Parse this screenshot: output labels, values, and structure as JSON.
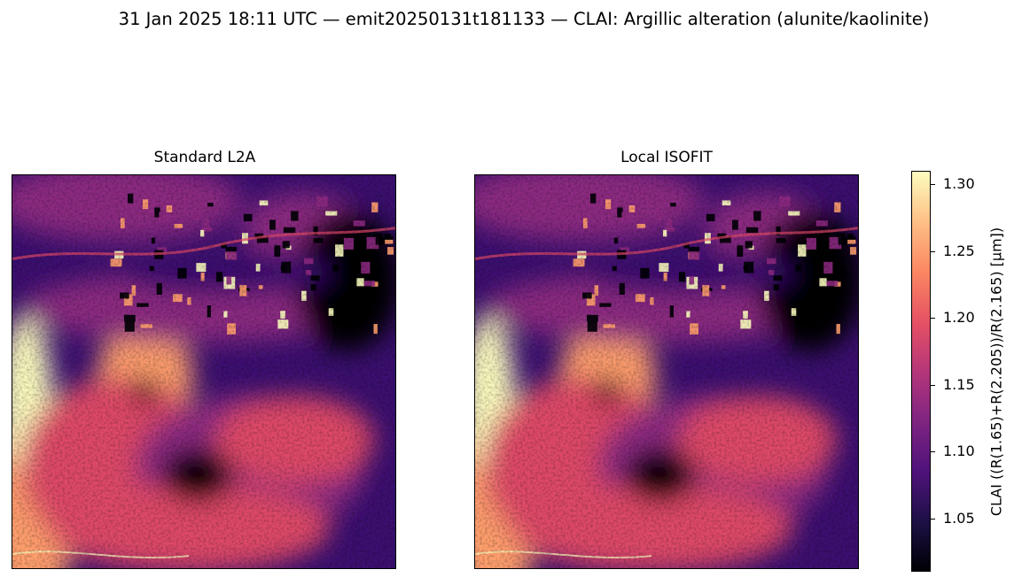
{
  "figure": {
    "suptitle": "31 Jan 2025 18:11 UTC — emit20250131t181133 — CLAI: Argillic alteration (alunite/kaolinite)"
  },
  "panels": [
    {
      "title": "Standard L2A"
    },
    {
      "title": "Local ISOFIT"
    }
  ],
  "colorbar": {
    "label": "CLAI  ((R(1.65)+R(2.205))/R(2.165)  [µm])",
    "ticks": [
      "1.05",
      "1.10",
      "1.15",
      "1.20",
      "1.25",
      "1.30"
    ],
    "range": [
      1.01,
      1.31
    ],
    "colormap": "magma"
  },
  "colors": {
    "dark": "#000004",
    "purple": "#3b0f70",
    "magenta": "#8c2981",
    "pink": "#de4968",
    "orange": "#fe9f6d",
    "pale": "#fcfdbf"
  }
}
